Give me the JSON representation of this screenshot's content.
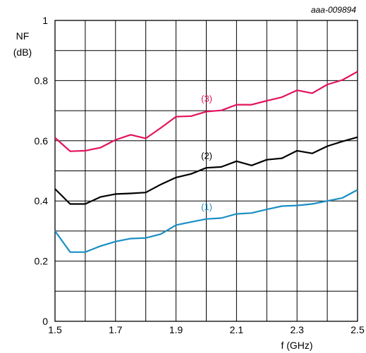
{
  "chart_data": {
    "type": "line",
    "reference": "aaa-009894",
    "ylabel_line1": "NF",
    "ylabel_line2": "(dB)",
    "xlabel": "f (GHz)",
    "xlim": [
      1.5,
      2.5
    ],
    "ylim": [
      0,
      1
    ],
    "grid": true,
    "x_ticks": [
      1.5,
      1.6,
      1.7,
      1.8,
      1.9,
      2.0,
      2.1,
      2.2,
      2.3,
      2.4,
      2.5
    ],
    "x_tick_labels": [
      {
        "value": 1.5,
        "label": "1.5"
      },
      {
        "value": 1.7,
        "label": "1.7"
      },
      {
        "value": 1.9,
        "label": "1.9"
      },
      {
        "value": 2.1,
        "label": "2.1"
      },
      {
        "value": 2.3,
        "label": "2.3"
      },
      {
        "value": 2.5,
        "label": "2.5"
      }
    ],
    "y_ticks": [
      0,
      0.1,
      0.2,
      0.3,
      0.4,
      0.5,
      0.6,
      0.7,
      0.8,
      0.9,
      1.0
    ],
    "y_tick_labels": [
      {
        "value": 0,
        "label": "0"
      },
      {
        "value": 0.2,
        "label": "0.2"
      },
      {
        "value": 0.4,
        "label": "0.4"
      },
      {
        "value": 0.6,
        "label": "0.6"
      },
      {
        "value": 0.8,
        "label": "0.8"
      },
      {
        "value": 1.0,
        "label": "1"
      }
    ],
    "x": [
      1.5,
      1.55,
      1.6,
      1.65,
      1.7,
      1.75,
      1.8,
      1.85,
      1.9,
      1.95,
      2.0,
      2.05,
      2.1,
      2.15,
      2.2,
      2.25,
      2.3,
      2.35,
      2.4,
      2.45,
      2.5
    ],
    "series": [
      {
        "label": "(1)",
        "color": "#1a8fc4",
        "label_at": [
          2.02,
          0.37
        ],
        "values": [
          0.3,
          0.23,
          0.23,
          0.25,
          0.265,
          0.275,
          0.277,
          0.29,
          0.32,
          0.33,
          0.34,
          0.343,
          0.357,
          0.36,
          0.372,
          0.383,
          0.385,
          0.39,
          0.4,
          0.41,
          0.437
        ]
      },
      {
        "label": "(2)",
        "color": "#000000",
        "label_at": [
          2.02,
          0.54
        ],
        "values": [
          0.44,
          0.39,
          0.39,
          0.413,
          0.423,
          0.425,
          0.428,
          0.455,
          0.478,
          0.49,
          0.51,
          0.513,
          0.532,
          0.518,
          0.537,
          0.542,
          0.567,
          0.558,
          0.582,
          0.598,
          0.612
        ]
      },
      {
        "label": "(3)",
        "color": "#e3125d",
        "label_at": [
          2.02,
          0.73
        ],
        "values": [
          0.61,
          0.565,
          0.567,
          0.577,
          0.603,
          0.62,
          0.608,
          0.643,
          0.68,
          0.682,
          0.697,
          0.701,
          0.72,
          0.72,
          0.733,
          0.745,
          0.768,
          0.758,
          0.787,
          0.802,
          0.83
        ]
      }
    ]
  }
}
